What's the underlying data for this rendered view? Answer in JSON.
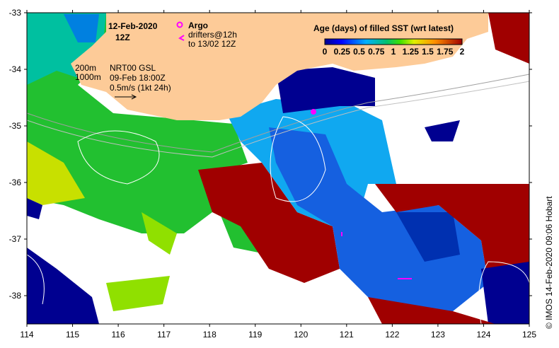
{
  "title": {
    "date": "12-Feb-2020",
    "time": "12Z"
  },
  "legend_items": {
    "argo": "Argo",
    "drifters_line1": "drifters@12h",
    "drifters_line2": "to 13/02 12Z"
  },
  "contours": {
    "depth1": "200m",
    "depth2": "1000m"
  },
  "currents": {
    "product": "NRT00 GSL",
    "datetime": "09-Feb 18:00Z",
    "scale": "0.5m/s (1kt 24h)"
  },
  "colorbar": {
    "title": "Age (days) of filled SST (wrt latest)",
    "ticks": [
      "0",
      "0.25",
      "0.5",
      "0.75",
      "1",
      "1.25",
      "1.5",
      "1.75",
      "2"
    ],
    "range_days": [
      0,
      2
    ]
  },
  "axes": {
    "x_ticks": [
      "114",
      "115",
      "116",
      "117",
      "118",
      "119",
      "120",
      "121",
      "122",
      "123",
      "124",
      "125"
    ],
    "y_ticks": [
      "-33",
      "-34",
      "-35",
      "-36",
      "-37",
      "-38"
    ]
  },
  "credit": "© IMOS 14-Feb-2020 09:06 Hobart",
  "colors": {
    "land": "#fdcb98",
    "nodata": "#ffffff",
    "argo": "#ff00ff"
  }
}
